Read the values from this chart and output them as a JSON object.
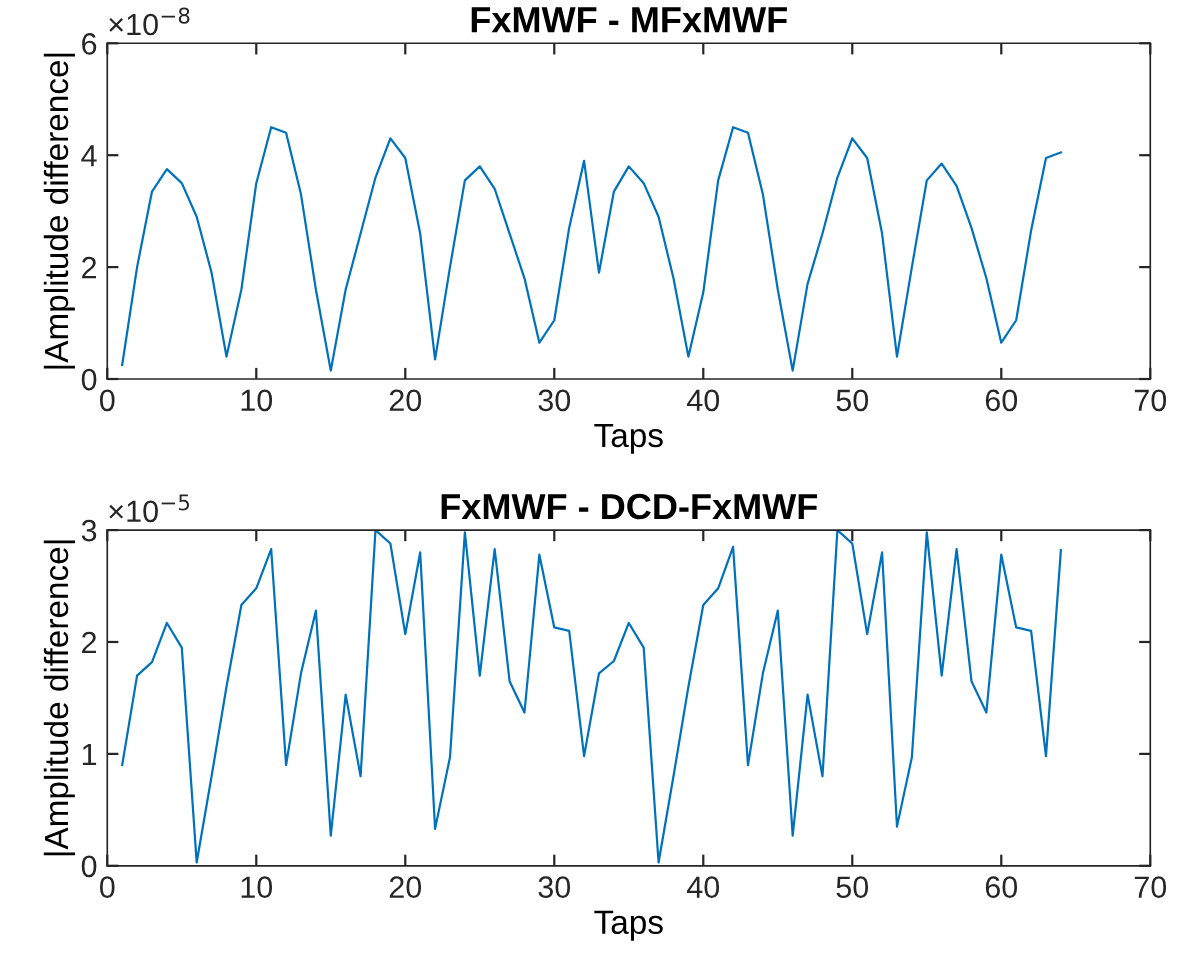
{
  "chart_data": [
    {
      "type": "line",
      "title": "FxMWF - MFxMWF",
      "xlabel": "Taps",
      "ylabel": "|Amplitude difference|",
      "annotations": [
        "×10$^{−8}$"
      ],
      "grid": false,
      "marker": "none",
      "line_style": "solid",
      "x": [
        1,
        2,
        3,
        4,
        5,
        6,
        7,
        8,
        9,
        10,
        11,
        12,
        13,
        14,
        15,
        16,
        17,
        18,
        19,
        20,
        21,
        22,
        23,
        24,
        25,
        26,
        27,
        28,
        29,
        30,
        31,
        32,
        33,
        34,
        35,
        36,
        37,
        38,
        39,
        40,
        41,
        42,
        43,
        44,
        45,
        46,
        47,
        48,
        49,
        50,
        51,
        52,
        53,
        54,
        55,
        56,
        57,
        58,
        59,
        60,
        61,
        62,
        63,
        64
      ],
      "series": [
        {
          "color": "#0072bd",
          "values": [
            0.25,
            2.0,
            3.35,
            3.75,
            3.5,
            2.9,
            1.9,
            0.4,
            1.6,
            3.5,
            4.5,
            4.4,
            3.3,
            1.6,
            0.15,
            1.6,
            2.6,
            3.6,
            4.3,
            3.95,
            2.6,
            0.35,
            2.0,
            3.55,
            3.8,
            3.4,
            2.6,
            1.8,
            0.65,
            1.05,
            2.7,
            3.9,
            1.9,
            3.35,
            3.8,
            3.5,
            2.9,
            1.8,
            0.4,
            1.55,
            3.55,
            4.5,
            4.4,
            3.3,
            1.6,
            0.15,
            1.7,
            2.6,
            3.6,
            4.3,
            3.95,
            2.6,
            0.4,
            2.0,
            3.55,
            3.85,
            3.45,
            2.7,
            1.8,
            0.65,
            1.05,
            2.65,
            3.95,
            4.05
          ]
        }
      ],
      "xlim": [
        0,
        70
      ],
      "xticks": [
        0,
        10,
        20,
        30,
        40,
        50,
        60,
        70
      ],
      "ylim": [
        0,
        6
      ],
      "yticks": [
        0,
        2,
        4,
        6
      ]
    },
    {
      "type": "line",
      "title": "FxMWF - DCD-FxMWF",
      "xlabel": "Taps",
      "ylabel": "|Amplitude difference|",
      "annotations": [
        "×10$^{−5}$"
      ],
      "grid": false,
      "marker": "none",
      "line_style": "solid",
      "x": [
        1,
        2,
        3,
        4,
        5,
        6,
        7,
        8,
        9,
        10,
        11,
        12,
        13,
        14,
        15,
        16,
        17,
        18,
        19,
        20,
        21,
        22,
        23,
        24,
        25,
        26,
        27,
        28,
        29,
        30,
        31,
        32,
        33,
        34,
        35,
        36,
        37,
        38,
        39,
        40,
        41,
        42,
        43,
        44,
        45,
        46,
        47,
        48,
        49,
        50,
        51,
        52,
        53,
        54,
        55,
        56,
        57,
        58,
        59,
        60,
        61,
        62,
        63,
        64
      ],
      "series": [
        {
          "color": "#0072bd",
          "values": [
            0.9,
            1.7,
            1.82,
            2.17,
            1.95,
            0.03,
            0.8,
            1.6,
            2.33,
            2.48,
            2.83,
            0.9,
            1.72,
            2.28,
            0.27,
            1.53,
            0.8,
            3.0,
            2.88,
            2.07,
            2.8,
            0.33,
            0.97,
            2.98,
            1.7,
            2.83,
            1.65,
            1.37,
            2.78,
            2.13,
            2.1,
            0.98,
            1.72,
            1.83,
            2.17,
            1.95,
            0.03,
            0.8,
            1.6,
            2.33,
            2.48,
            2.85,
            0.9,
            1.72,
            2.28,
            0.27,
            1.53,
            0.8,
            3.0,
            2.88,
            2.07,
            2.8,
            0.35,
            0.97,
            2.98,
            1.7,
            2.83,
            1.65,
            1.37,
            2.78,
            2.13,
            2.1,
            0.98,
            2.82
          ]
        }
      ],
      "xlim": [
        0,
        70
      ],
      "xticks": [
        0,
        10,
        20,
        30,
        40,
        50,
        60,
        70
      ],
      "ylim": [
        0,
        3
      ],
      "yticks": [
        0,
        1,
        2,
        3
      ]
    }
  ]
}
